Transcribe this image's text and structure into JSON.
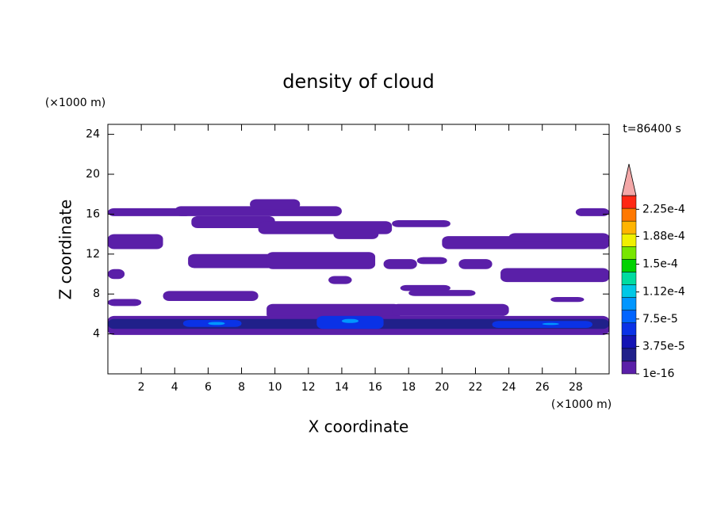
{
  "chart_data": {
    "type": "contour",
    "title": "density of cloud",
    "xlabel": "X coordinate",
    "ylabel": "Z coordinate",
    "xunit": "(×1000 m)",
    "yunit": "(×1000 m)",
    "annotation": "t=86400 s",
    "xlim": [
      0,
      30
    ],
    "ylim": [
      0,
      25
    ],
    "xticks": [
      2,
      4,
      6,
      8,
      10,
      12,
      14,
      16,
      18,
      20,
      22,
      24,
      26,
      28
    ],
    "yticks": [
      4,
      8,
      12,
      16,
      20,
      24
    ],
    "colorbar": {
      "clim": [
        0,
        0.00024375
      ],
      "colors": [
        "#5a1fa8",
        "#20208a",
        "#1414b4",
        "#0a32e6",
        "#0064ff",
        "#0096ff",
        "#00c8e6",
        "#00dca0",
        "#00d200",
        "#78e600",
        "#f0f000",
        "#ffb400",
        "#ff7800",
        "#ff2814"
      ],
      "extend_color": "#f4a8a8",
      "ticks": [
        1e-16,
        {
          "value": 3.75e-05,
          "label": "3.75e-5"
        },
        {
          "value": 7.5e-05,
          "label": "7.5e-5"
        },
        {
          "value": 0.000112,
          "label": "1.12e-4"
        },
        {
          "value": 0.00015,
          "label": "1.5e-4"
        },
        {
          "value": 0.000188,
          "label": "1.88e-4"
        },
        {
          "value": 0.000225,
          "label": "2.25e-4"
        }
      ]
    },
    "regions": [
      {
        "x": [
          0,
          5
        ],
        "z": [
          15.8,
          16.6
        ],
        "level": 1e-16
      },
      {
        "x": [
          4,
          14
        ],
        "z": [
          15.8,
          16.8
        ],
        "level": 1e-16
      },
      {
        "x": [
          8.5,
          11.5
        ],
        "z": [
          16.5,
          17.5
        ],
        "level": 1e-16
      },
      {
        "x": [
          28,
          30
        ],
        "z": [
          15.8,
          16.6
        ],
        "level": 1e-16
      },
      {
        "x": [
          5,
          10
        ],
        "z": [
          14.6,
          15.8
        ],
        "level": 1e-16
      },
      {
        "x": [
          9,
          17
        ],
        "z": [
          14,
          15.3
        ],
        "level": 1e-16
      },
      {
        "x": [
          17,
          20.5
        ],
        "z": [
          14.7,
          15.4
        ],
        "level": 1e-16
      },
      {
        "x": [
          0,
          3.3
        ],
        "z": [
          12.5,
          14
        ],
        "level": 1e-16
      },
      {
        "x": [
          13.5,
          16.2
        ],
        "z": [
          13.5,
          14.5
        ],
        "level": 1e-16
      },
      {
        "x": [
          20,
          30
        ],
        "z": [
          12.5,
          13.8
        ],
        "level": 1e-16
      },
      {
        "x": [
          24,
          30
        ],
        "z": [
          13.3,
          14.1
        ],
        "level": 1e-16
      },
      {
        "x": [
          4.8,
          10
        ],
        "z": [
          10.6,
          12
        ],
        "level": 1e-16
      },
      {
        "x": [
          9.5,
          16
        ],
        "z": [
          10.5,
          12.2
        ],
        "level": 1e-16
      },
      {
        "x": [
          16.5,
          18.5
        ],
        "z": [
          10.5,
          11.5
        ],
        "level": 1e-16
      },
      {
        "x": [
          18.5,
          20.3
        ],
        "z": [
          11,
          11.7
        ],
        "level": 1e-16
      },
      {
        "x": [
          21,
          23
        ],
        "z": [
          10.5,
          11.5
        ],
        "level": 1e-16
      },
      {
        "x": [
          0,
          1
        ],
        "z": [
          9.5,
          10.5
        ],
        "level": 1e-16
      },
      {
        "x": [
          13.2,
          14.6
        ],
        "z": [
          9,
          9.8
        ],
        "level": 1e-16
      },
      {
        "x": [
          23.5,
          30
        ],
        "z": [
          9.2,
          10.6
        ],
        "level": 1e-16
      },
      {
        "x": [
          3.3,
          9
        ],
        "z": [
          7.3,
          8.3
        ],
        "level": 1e-16
      },
      {
        "x": [
          17.5,
          20.5
        ],
        "z": [
          8.3,
          8.9
        ],
        "level": 1e-16
      },
      {
        "x": [
          18,
          22
        ],
        "z": [
          7.8,
          8.4
        ],
        "level": 1e-16
      },
      {
        "x": [
          0,
          2
        ],
        "z": [
          6.8,
          7.5
        ],
        "level": 1e-16
      },
      {
        "x": [
          26.5,
          28.5
        ],
        "z": [
          7.2,
          7.7
        ],
        "level": 1e-16
      },
      {
        "x": [
          9.5,
          17.5
        ],
        "z": [
          5.5,
          7
        ],
        "level": 1e-16
      },
      {
        "x": [
          17,
          24
        ],
        "z": [
          5.8,
          7
        ],
        "level": 1e-16
      },
      {
        "x": [
          0,
          30
        ],
        "z": [
          3.9,
          5.8
        ],
        "level": 1e-16
      },
      {
        "x": [
          0,
          30
        ],
        "z": [
          4.5,
          5.5
        ],
        "level": 3e-05
      },
      {
        "x": [
          4.5,
          8
        ],
        "z": [
          4.7,
          5.4
        ],
        "level": 6e-05
      },
      {
        "x": [
          12.5,
          16.5
        ],
        "z": [
          4.5,
          5.8
        ],
        "level": 6e-05
      },
      {
        "x": [
          23,
          29
        ],
        "z": [
          4.6,
          5.3
        ],
        "level": 6e-05
      },
      {
        "x": [
          6,
          7
        ],
        "z": [
          4.9,
          5.2
        ],
        "level": 9e-05
      },
      {
        "x": [
          14,
          15
        ],
        "z": [
          5.1,
          5.5
        ],
        "level": 9e-05
      },
      {
        "x": [
          26,
          27
        ],
        "z": [
          4.9,
          5.1
        ],
        "level": 9e-05
      }
    ]
  }
}
